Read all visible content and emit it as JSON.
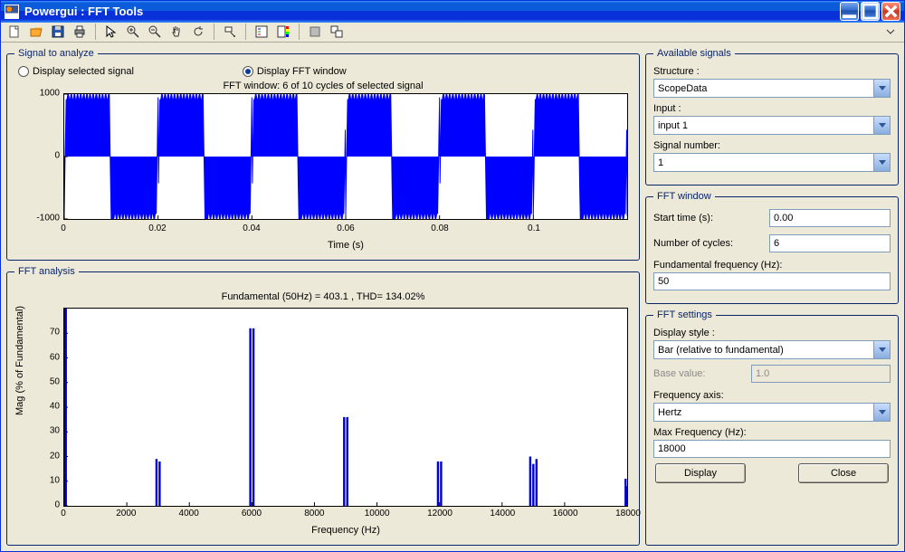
{
  "title": "Powergui : FFT Tools",
  "toolbar_icons": [
    "new-icon",
    "open-icon",
    "save-icon",
    "print-icon",
    "sep",
    "pointer-icon",
    "zoom-in-icon",
    "zoom-out-icon",
    "pan-icon",
    "rotate-icon",
    "sep",
    "cursor-icon",
    "sep",
    "legend-icon",
    "colorbar-icon",
    "sep",
    "gray-box-icon",
    "dual-box-icon"
  ],
  "signal_panel": {
    "legend": "Signal to analyze",
    "radio1": "Display selected signal",
    "radio2": "Display FFT window",
    "chart": {
      "title": "FFT window: 6 of 10 cycles of selected signal",
      "xlabel": "Time (s)",
      "ylim": [
        -1000,
        1000
      ],
      "yticks": [
        -1000,
        0,
        1000
      ],
      "xlim": [
        0,
        0.12
      ],
      "xticks": [
        "0",
        "0.02",
        "0.04",
        "0.06",
        "0.08",
        "0.1",
        ""
      ],
      "cycles": 6,
      "color": "#0000ff",
      "bg": "#ffffff"
    }
  },
  "fft_panel": {
    "legend": "FFT analysis",
    "chart": {
      "title": "Fundamental (50Hz) = 403.1 , THD= 134.02%",
      "xlabel": "Frequency (Hz)",
      "ylabel": "Mag (% of Fundamental)",
      "ylim": [
        0,
        80
      ],
      "yticks": [
        0,
        10,
        20,
        30,
        40,
        50,
        60,
        70
      ],
      "xlim": [
        0,
        18000
      ],
      "xticks": [
        0,
        2000,
        4000,
        6000,
        8000,
        10000,
        12000,
        14000,
        16000,
        18000
      ],
      "bars": [
        {
          "f": 0,
          "m": 80
        },
        {
          "f": 50,
          "m": 80
        },
        {
          "f": 2950,
          "m": 19
        },
        {
          "f": 3050,
          "m": 18
        },
        {
          "f": 5950,
          "m": 72
        },
        {
          "f": 6050,
          "m": 72
        },
        {
          "f": 8950,
          "m": 36
        },
        {
          "f": 9050,
          "m": 36
        },
        {
          "f": 11950,
          "m": 18
        },
        {
          "f": 12050,
          "m": 18
        },
        {
          "f": 14900,
          "m": 20
        },
        {
          "f": 15000,
          "m": 17
        },
        {
          "f": 15100,
          "m": 19
        },
        {
          "f": 17950,
          "m": 11
        },
        {
          "f": 18000,
          "m": 8
        }
      ],
      "color": "#0000cd",
      "bg": "#ffffff"
    }
  },
  "available": {
    "legend": "Available signals",
    "structure_label": "Structure :",
    "structure_value": "ScopeData",
    "input_label": "Input :",
    "input_value": "input 1",
    "signalno_label": "Signal number:",
    "signalno_value": "1"
  },
  "fftwindow": {
    "legend": "FFT window",
    "start_label": "Start time (s):",
    "start_value": "0.00",
    "cycles_label": "Number of cycles:",
    "cycles_value": "6",
    "fund_label": "Fundamental frequency (Hz):",
    "fund_value": "50"
  },
  "fftsettings": {
    "legend": "FFT settings",
    "style_label": "Display style :",
    "style_value": "Bar (relative to fundamental)",
    "base_label": "Base value:",
    "base_value": "1.0",
    "freqaxis_label": "Frequency axis:",
    "freqaxis_value": "Hertz",
    "maxfreq_label": "Max Frequency (Hz):",
    "maxfreq_value": "18000",
    "display_btn": "Display",
    "close_btn": "Close"
  }
}
